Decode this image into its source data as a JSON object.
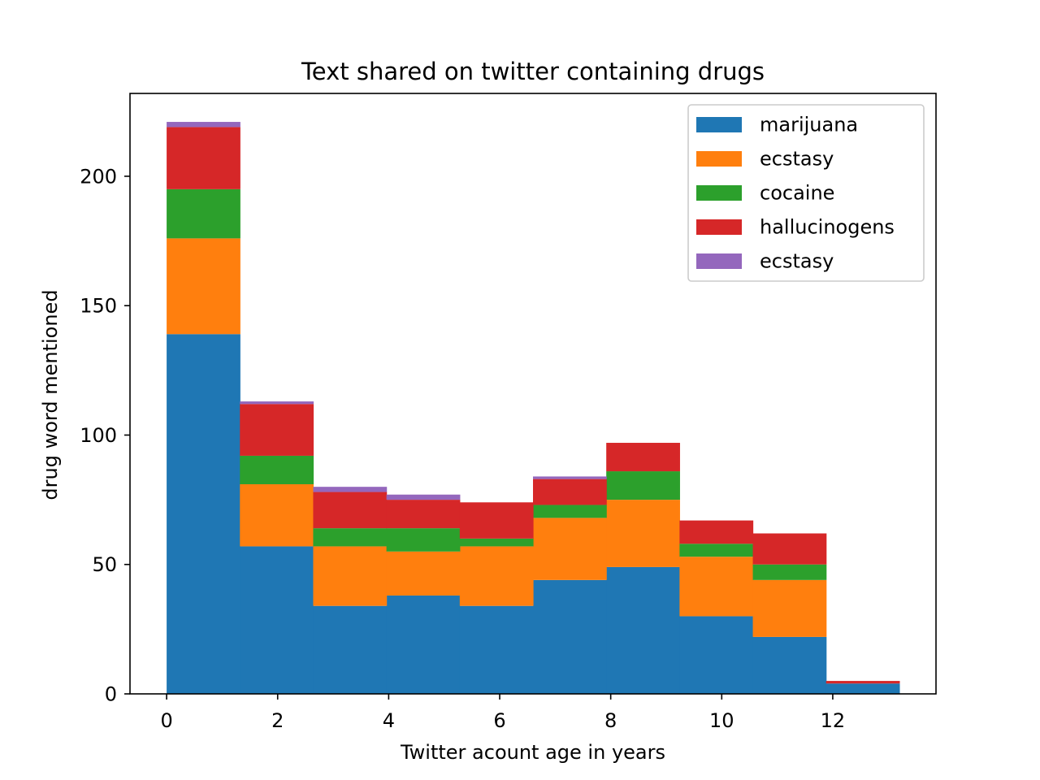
{
  "chart_data": {
    "type": "bar",
    "subtype": "stacked-histogram",
    "title": "Text shared on twitter containing drugs",
    "xlabel": "Twitter acount age in years",
    "ylabel": "drug word mentioned",
    "xlim": [
      -0.66,
      13.86
    ],
    "ylim": [
      0,
      232
    ],
    "xticks": [
      0,
      2,
      4,
      6,
      8,
      10,
      12
    ],
    "yticks": [
      0,
      50,
      100,
      150,
      200
    ],
    "bin_edges": [
      0,
      1.32,
      2.64,
      3.96,
      5.28,
      6.6,
      7.92,
      9.24,
      10.56,
      11.88,
      13.2
    ],
    "grid": false,
    "legend_position": "upper right",
    "series": [
      {
        "name": "marijuana",
        "color": "#1f77b4",
        "values": [
          139,
          57,
          34,
          38,
          34,
          44,
          49,
          30,
          22,
          4
        ]
      },
      {
        "name": "ecstasy",
        "color": "#ff7f0e",
        "values": [
          37,
          24,
          23,
          17,
          23,
          24,
          26,
          23,
          22,
          0
        ]
      },
      {
        "name": "cocaine",
        "color": "#2ca02c",
        "values": [
          19,
          11,
          7,
          9,
          3,
          5,
          11,
          5,
          6,
          0
        ]
      },
      {
        "name": "hallucinogens",
        "color": "#d62728",
        "values": [
          24,
          20,
          14,
          11,
          14,
          10,
          11,
          9,
          12,
          1
        ]
      },
      {
        "name": "ecstasy",
        "color": "#9467bd",
        "values": [
          2,
          1,
          2,
          2,
          0,
          1,
          0,
          0,
          0,
          0
        ]
      }
    ]
  }
}
